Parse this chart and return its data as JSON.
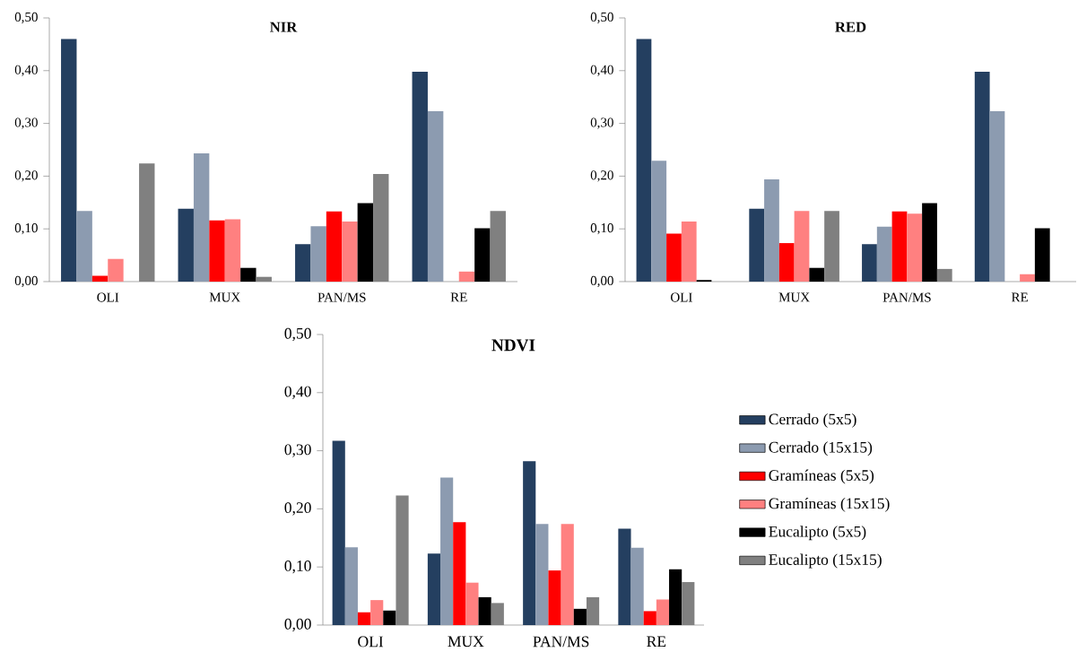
{
  "chart_data": [
    {
      "type": "bar",
      "title": "NIR",
      "categories": [
        "OLI",
        "MUX",
        "PAN/MS",
        "RE"
      ],
      "ylim": [
        0,
        0.5
      ],
      "yticks": [
        {
          "value": 0,
          "label": "0,00"
        },
        {
          "value": 0.1,
          "label": "0,10"
        },
        {
          "value": 0.2,
          "label": "0,20"
        },
        {
          "value": 0.3,
          "label": "0,30"
        },
        {
          "value": 0.4,
          "label": "0,40"
        },
        {
          "value": 0.5,
          "label": "0,50"
        }
      ],
      "series": [
        {
          "color": "#243f60",
          "values": [
            0.46,
            0.138,
            0.071,
            0.398
          ]
        },
        {
          "color": "#8c9bb0",
          "values": [
            0.134,
            0.243,
            0.105,
            0.323
          ]
        },
        {
          "color": "#ff0000",
          "values": [
            0.011,
            0.116,
            0.133,
            null
          ]
        },
        {
          "color": "#ff8080",
          "values": [
            0.043,
            0.118,
            0.114,
            0.019
          ]
        },
        {
          "color": "#000000",
          "values": [
            null,
            0.026,
            0.149,
            0.101
          ]
        },
        {
          "color": "#808080",
          "values": [
            0.224,
            0.009,
            0.204,
            0.134
          ]
        }
      ]
    },
    {
      "type": "bar",
      "title": "RED",
      "categories": [
        "OLI",
        "MUX",
        "PAN/MS",
        "RE"
      ],
      "ylim": [
        0,
        0.5
      ],
      "yticks": [
        {
          "value": 0,
          "label": "0,00"
        },
        {
          "value": 0.1,
          "label": "0,10"
        },
        {
          "value": 0.2,
          "label": "0,20"
        },
        {
          "value": 0.3,
          "label": "0,30"
        },
        {
          "value": 0.4,
          "label": "0,40"
        },
        {
          "value": 0.5,
          "label": "0,50"
        }
      ],
      "series": [
        {
          "color": "#243f60",
          "values": [
            0.46,
            0.138,
            0.071,
            0.398
          ]
        },
        {
          "color": "#8c9bb0",
          "values": [
            0.229,
            0.194,
            0.104,
            0.323
          ]
        },
        {
          "color": "#ff0000",
          "values": [
            0.091,
            0.073,
            0.133,
            null
          ]
        },
        {
          "color": "#ff8080",
          "values": [
            0.114,
            0.134,
            0.129,
            0.014
          ]
        },
        {
          "color": "#000000",
          "values": [
            0.003,
            0.026,
            0.149,
            0.101
          ]
        },
        {
          "color": "#808080",
          "values": [
            null,
            0.134,
            0.024,
            null
          ]
        }
      ]
    },
    {
      "type": "bar",
      "title": "NDVI",
      "categories": [
        "OLI",
        "MUX",
        "PAN/MS",
        "RE"
      ],
      "ylim": [
        0,
        0.5
      ],
      "legend": "right",
      "yticks": [
        {
          "value": 0,
          "label": "0,00"
        },
        {
          "value": 0.1,
          "label": "0,10"
        },
        {
          "value": 0.2,
          "label": "0,20"
        },
        {
          "value": 0.3,
          "label": "0,30"
        },
        {
          "value": 0.4,
          "label": "0,40"
        },
        {
          "value": 0.5,
          "label": "0,50"
        }
      ],
      "series": [
        {
          "name": "Cerrado (5x5)",
          "color": "#243f60",
          "values": [
            0.317,
            0.123,
            0.282,
            0.166
          ]
        },
        {
          "name": "Cerrado (15x15)",
          "color": "#8c9bb0",
          "values": [
            0.134,
            0.254,
            0.174,
            0.133
          ]
        },
        {
          "name": "Gramíneas (5x5)",
          "color": "#ff0000",
          "values": [
            0.022,
            0.177,
            0.094,
            0.024
          ]
        },
        {
          "name": "Gramíneas (15x15)",
          "color": "#ff8080",
          "values": [
            0.043,
            0.073,
            0.174,
            0.044
          ]
        },
        {
          "name": "Eucalipto (5x5)",
          "color": "#000000",
          "values": [
            0.025,
            0.048,
            0.028,
            0.096
          ]
        },
        {
          "name": "Eucalipto (15x15)",
          "color": "#808080",
          "values": [
            0.223,
            0.038,
            0.048,
            0.074
          ]
        }
      ]
    }
  ]
}
